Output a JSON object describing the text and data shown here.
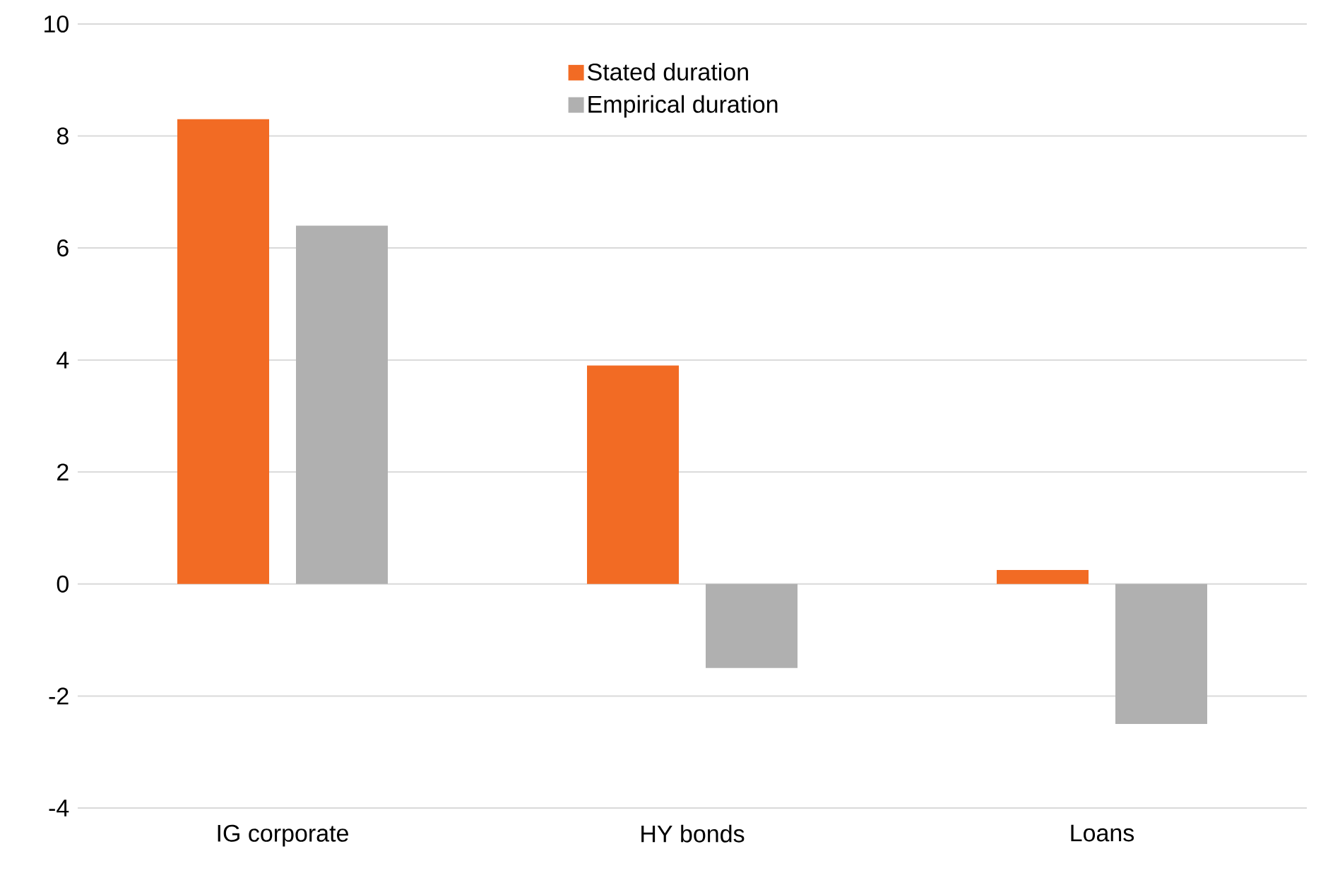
{
  "chart_data": {
    "type": "bar",
    "categories": [
      "IG corporate",
      "HY bonds",
      "Loans"
    ],
    "series": [
      {
        "name": "Stated duration",
        "color": "#f26b24",
        "values": [
          8.3,
          3.9,
          0.25
        ]
      },
      {
        "name": "Empirical duration",
        "color": "#b0b0b0",
        "values": [
          6.4,
          -1.5,
          -2.5
        ]
      }
    ],
    "ylim": [
      -4,
      10
    ],
    "yticks": [
      -4,
      -2,
      0,
      2,
      4,
      6,
      8,
      10
    ],
    "grid": "y",
    "legend": "top"
  }
}
